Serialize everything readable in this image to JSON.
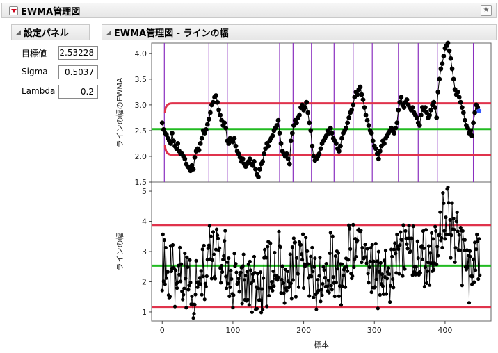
{
  "window": {
    "title": "EWMA管理図"
  },
  "settings_panel": {
    "title": "設定パネル",
    "fields": [
      {
        "label": "目標値",
        "value": "2.53228"
      },
      {
        "label": "Sigma",
        "value": "0.5037"
      },
      {
        "label": "Lambda",
        "value": "0.2"
      }
    ]
  },
  "chart_panel": {
    "title": "EWMA管理図 - ラインの幅"
  },
  "colors": {
    "center_line": "#22bb22",
    "limit_line": "#e0334c",
    "shift_line": "#8b2fbf",
    "points": "#000000",
    "last_point": "#3355ff"
  },
  "chart_data": [
    {
      "type": "line",
      "ylabel": "ラインの幅のEWMA",
      "xlim": [
        -15,
        465
      ],
      "ylim": [
        1.5,
        4.2
      ],
      "yticks": [
        "1.5",
        "2.0",
        "2.5",
        "3.0",
        "3.5",
        "4.0"
      ],
      "center": 2.53,
      "ucl": 3.03,
      "lcl": 2.03,
      "shift_lines_x": [
        3,
        66,
        92,
        166,
        185,
        211,
        243,
        270,
        297,
        334,
        362,
        389,
        440
      ],
      "ewma_points": [
        [
          0,
          2.65
        ],
        [
          2,
          2.52
        ],
        [
          4,
          2.45
        ],
        [
          6,
          2.42
        ],
        [
          8,
          2.35
        ],
        [
          10,
          2.3
        ],
        [
          12,
          2.25
        ],
        [
          14,
          2.45
        ],
        [
          16,
          2.3
        ],
        [
          18,
          2.2
        ],
        [
          20,
          2.15
        ],
        [
          22,
          2.25
        ],
        [
          24,
          2.1
        ],
        [
          26,
          2.05
        ],
        [
          28,
          2.05
        ],
        [
          30,
          2.0
        ],
        [
          32,
          1.95
        ],
        [
          34,
          1.85
        ],
        [
          36,
          1.8
        ],
        [
          38,
          1.78
        ],
        [
          40,
          1.72
        ],
        [
          42,
          1.82
        ],
        [
          44,
          1.75
        ],
        [
          46,
          1.98
        ],
        [
          48,
          2.1
        ],
        [
          50,
          2.15
        ],
        [
          52,
          2.12
        ],
        [
          54,
          2.25
        ],
        [
          56,
          2.35
        ],
        [
          58,
          2.5
        ],
        [
          60,
          2.45
        ],
        [
          62,
          2.52
        ],
        [
          64,
          2.62
        ],
        [
          66,
          2.72
        ],
        [
          68,
          2.85
        ],
        [
          70,
          3.0
        ],
        [
          72,
          3.05
        ],
        [
          74,
          3.15
        ],
        [
          76,
          3.18
        ],
        [
          78,
          3.05
        ],
        [
          80,
          2.9
        ],
        [
          82,
          2.8
        ],
        [
          84,
          2.7
        ],
        [
          86,
          2.6
        ],
        [
          88,
          2.65
        ],
        [
          90,
          2.55
        ],
        [
          92,
          2.3
        ],
        [
          94,
          2.25
        ],
        [
          96,
          2.35
        ],
        [
          98,
          2.3
        ],
        [
          100,
          2.28
        ],
        [
          102,
          2.35
        ],
        [
          104,
          2.2
        ],
        [
          106,
          2.1
        ],
        [
          108,
          2.05
        ],
        [
          110,
          1.98
        ],
        [
          112,
          1.9
        ],
        [
          114,
          1.95
        ],
        [
          116,
          1.85
        ],
        [
          118,
          1.8
        ],
        [
          120,
          1.85
        ],
        [
          122,
          1.9
        ],
        [
          124,
          1.95
        ],
        [
          126,
          1.85
        ],
        [
          128,
          1.82
        ],
        [
          130,
          1.9
        ],
        [
          132,
          1.75
        ],
        [
          134,
          1.65
        ],
        [
          136,
          1.6
        ],
        [
          138,
          1.75
        ],
        [
          140,
          1.85
        ],
        [
          142,
          1.9
        ],
        [
          144,
          2.05
        ],
        [
          146,
          2.15
        ],
        [
          148,
          2.25
        ],
        [
          150,
          2.2
        ],
        [
          152,
          2.3
        ],
        [
          154,
          2.35
        ],
        [
          156,
          2.4
        ],
        [
          158,
          2.5
        ],
        [
          160,
          2.55
        ],
        [
          162,
          2.6
        ],
        [
          164,
          2.7
        ],
        [
          166,
          2.45
        ],
        [
          168,
          2.25
        ],
        [
          170,
          2.1
        ],
        [
          172,
          2.05
        ],
        [
          174,
          2.0
        ],
        [
          176,
          2.05
        ],
        [
          178,
          1.95
        ],
        [
          180,
          1.85
        ],
        [
          182,
          2.3
        ],
        [
          184,
          2.45
        ],
        [
          186,
          2.6
        ],
        [
          188,
          2.7
        ],
        [
          190,
          2.65
        ],
        [
          192,
          2.75
        ],
        [
          194,
          2.8
        ],
        [
          196,
          2.95
        ],
        [
          198,
          3.0
        ],
        [
          200,
          2.9
        ],
        [
          202,
          2.95
        ],
        [
          204,
          3.05
        ],
        [
          206,
          2.85
        ],
        [
          208,
          2.65
        ],
        [
          210,
          2.5
        ],
        [
          212,
          2.2
        ],
        [
          214,
          2.0
        ],
        [
          216,
          1.92
        ],
        [
          218,
          1.95
        ],
        [
          220,
          2.0
        ],
        [
          222,
          2.05
        ],
        [
          224,
          2.15
        ],
        [
          226,
          2.25
        ],
        [
          228,
          2.3
        ],
        [
          230,
          2.35
        ],
        [
          232,
          2.4
        ],
        [
          234,
          2.5
        ],
        [
          236,
          2.45
        ],
        [
          238,
          2.55
        ],
        [
          240,
          2.45
        ],
        [
          242,
          2.35
        ],
        [
          244,
          2.3
        ],
        [
          246,
          2.25
        ],
        [
          248,
          2.15
        ],
        [
          250,
          2.1
        ],
        [
          252,
          2.2
        ],
        [
          254,
          2.35
        ],
        [
          256,
          2.45
        ],
        [
          258,
          2.5
        ],
        [
          260,
          2.55
        ],
        [
          262,
          2.65
        ],
        [
          264,
          2.75
        ],
        [
          266,
          2.85
        ],
        [
          268,
          2.9
        ],
        [
          270,
          3.0
        ],
        [
          272,
          3.15
        ],
        [
          274,
          3.25
        ],
        [
          276,
          3.2
        ],
        [
          278,
          3.3
        ],
        [
          280,
          3.35
        ],
        [
          282,
          3.2
        ],
        [
          284,
          3.1
        ],
        [
          286,
          2.95
        ],
        [
          288,
          2.8
        ],
        [
          290,
          2.7
        ],
        [
          292,
          2.6
        ],
        [
          294,
          2.5
        ],
        [
          296,
          2.45
        ],
        [
          298,
          2.3
        ],
        [
          300,
          2.2
        ],
        [
          302,
          2.15
        ],
        [
          304,
          2.05
        ],
        [
          306,
          1.95
        ],
        [
          308,
          2.1
        ],
        [
          310,
          2.2
        ],
        [
          312,
          2.3
        ],
        [
          314,
          2.25
        ],
        [
          316,
          2.35
        ],
        [
          318,
          2.4
        ],
        [
          320,
          2.45
        ],
        [
          322,
          2.5
        ],
        [
          324,
          2.55
        ],
        [
          326,
          2.5
        ],
        [
          328,
          2.45
        ],
        [
          330,
          2.55
        ],
        [
          332,
          2.65
        ],
        [
          334,
          2.9
        ],
        [
          336,
          3.05
        ],
        [
          338,
          3.15
        ],
        [
          340,
          3.0
        ],
        [
          342,
          2.95
        ],
        [
          344,
          3.05
        ],
        [
          346,
          3.1
        ],
        [
          348,
          3.0
        ],
        [
          350,
          2.95
        ],
        [
          352,
          2.9
        ],
        [
          354,
          2.95
        ],
        [
          356,
          2.85
        ],
        [
          358,
          2.8
        ],
        [
          360,
          2.75
        ],
        [
          362,
          2.65
        ],
        [
          364,
          2.6
        ],
        [
          366,
          2.8
        ],
        [
          368,
          2.95
        ],
        [
          370,
          2.9
        ],
        [
          372,
          2.95
        ],
        [
          374,
          2.85
        ],
        [
          376,
          2.75
        ],
        [
          378,
          2.8
        ],
        [
          380,
          2.9
        ],
        [
          382,
          3.0
        ],
        [
          384,
          3.05
        ],
        [
          386,
          2.95
        ],
        [
          388,
          2.75
        ],
        [
          390,
          3.25
        ],
        [
          392,
          3.5
        ],
        [
          394,
          3.7
        ],
        [
          396,
          3.8
        ],
        [
          398,
          3.95
        ],
        [
          400,
          4.1
        ],
        [
          402,
          4.15
        ],
        [
          404,
          4.2
        ],
        [
          406,
          4.05
        ],
        [
          408,
          3.9
        ],
        [
          410,
          3.7
        ],
        [
          412,
          3.5
        ],
        [
          414,
          3.3
        ],
        [
          416,
          3.2
        ],
        [
          418,
          3.25
        ],
        [
          420,
          3.15
        ],
        [
          422,
          3.05
        ],
        [
          424,
          2.95
        ],
        [
          426,
          2.85
        ],
        [
          428,
          2.7
        ],
        [
          430,
          2.6
        ],
        [
          432,
          2.55
        ],
        [
          434,
          2.45
        ],
        [
          436,
          2.5
        ],
        [
          438,
          2.4
        ],
        [
          440,
          2.65
        ],
        [
          442,
          2.85
        ],
        [
          444,
          3.0
        ],
        [
          446,
          2.95
        ],
        [
          448,
          2.88
        ]
      ]
    },
    {
      "type": "line",
      "ylabel": "ラインの幅",
      "xlabel": "標本",
      "xlim": [
        -15,
        465
      ],
      "ylim": [
        0.7,
        5.3
      ],
      "yticks": [
        "1",
        "2",
        "3",
        "4",
        "5"
      ],
      "xticks": [
        "0",
        "100",
        "200",
        "300",
        "400"
      ],
      "center": 2.53,
      "ucl": 3.88,
      "lcl": 1.17,
      "raw_seed": 2024
    }
  ]
}
